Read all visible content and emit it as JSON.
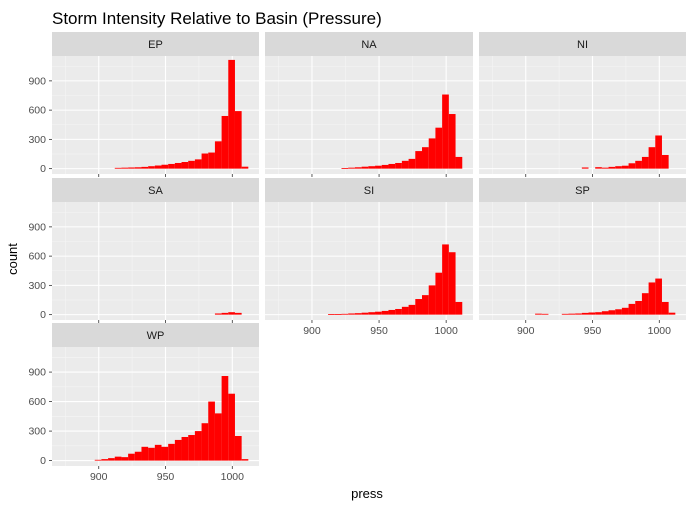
{
  "chart_data": {
    "type": "bar",
    "title": "Storm Intensity Relative to Basin (Pressure)",
    "xlabel": "press",
    "ylabel": "count",
    "xlim": [
      865,
      1020
    ],
    "ylim": [
      -55,
      1155
    ],
    "x_ticks": [
      900,
      950,
      1000
    ],
    "y_ticks": [
      0,
      300,
      600,
      900
    ],
    "grid": true,
    "bar_color": "#ff0000",
    "panel_background": "#ebebeb",
    "strip_background": "#d9d9d9",
    "bin_edges": [
      882,
      887,
      892,
      897,
      902,
      907,
      912,
      917,
      922,
      927,
      932,
      937,
      942,
      947,
      952,
      957,
      962,
      967,
      972,
      977,
      982,
      987,
      992,
      997,
      1002,
      1007,
      1012,
      1017
    ],
    "facets": [
      {
        "name": "EP",
        "values": [
          0,
          0,
          0,
          0,
          0,
          0,
          8,
          10,
          12,
          14,
          18,
          25,
          32,
          40,
          48,
          58,
          68,
          80,
          95,
          155,
          165,
          280,
          540,
          1115,
          590,
          20,
          0
        ]
      },
      {
        "name": "NA",
        "values": [
          0,
          0,
          0,
          0,
          0,
          0,
          0,
          0,
          5,
          10,
          14,
          20,
          25,
          30,
          38,
          48,
          58,
          80,
          100,
          180,
          220,
          310,
          420,
          760,
          560,
          120,
          0
        ]
      },
      {
        "name": "NI",
        "values": [
          0,
          0,
          0,
          0,
          0,
          0,
          0,
          0,
          0,
          0,
          0,
          0,
          12,
          0,
          15,
          10,
          18,
          25,
          30,
          55,
          80,
          120,
          220,
          340,
          140,
          0,
          0
        ]
      },
      {
        "name": "SA",
        "values": [
          0,
          0,
          0,
          0,
          0,
          0,
          0,
          0,
          0,
          0,
          0,
          0,
          0,
          0,
          0,
          0,
          0,
          0,
          0,
          0,
          0,
          12,
          18,
          25,
          18,
          0,
          0
        ]
      },
      {
        "name": "SI",
        "values": [
          0,
          0,
          0,
          0,
          0,
          0,
          5,
          6,
          8,
          12,
          15,
          20,
          25,
          30,
          38,
          48,
          58,
          80,
          100,
          160,
          200,
          300,
          430,
          720,
          640,
          130,
          0
        ]
      },
      {
        "name": "SP",
        "values": [
          0,
          0,
          0,
          0,
          0,
          10,
          8,
          0,
          0,
          8,
          10,
          12,
          18,
          22,
          25,
          35,
          45,
          55,
          70,
          110,
          140,
          220,
          330,
          370,
          130,
          20,
          0
        ]
      },
      {
        "name": "WP",
        "values": [
          0,
          0,
          0,
          8,
          15,
          25,
          40,
          35,
          70,
          90,
          140,
          130,
          160,
          140,
          170,
          210,
          240,
          260,
          300,
          380,
          600,
          480,
          860,
          680,
          250,
          15,
          0
        ]
      }
    ]
  }
}
